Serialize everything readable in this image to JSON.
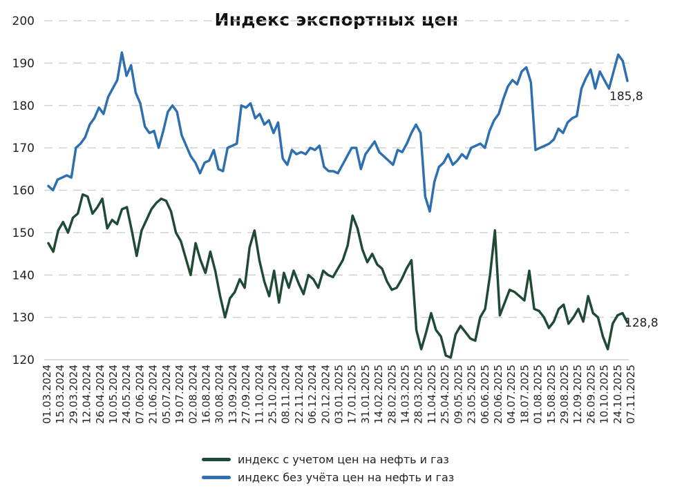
{
  "chart_data": {
    "type": "line",
    "title": "Индекс экспортных цен",
    "xlabel": "",
    "ylabel": "",
    "ylim": [
      120,
      200
    ],
    "yticks": [
      120,
      130,
      140,
      150,
      160,
      170,
      180,
      190,
      200
    ],
    "grid": true,
    "legend_position": "bottom",
    "x_tick_labels": [
      "01.03.2024",
      "15.03.2024",
      "29.03.2024",
      "12.04.2024",
      "26.04.2024",
      "10.05.2024",
      "24.05.2024",
      "07.06.2024",
      "21.06.2024",
      "05.07.2024",
      "19.07.2024",
      "02.08.2024",
      "16.08.2024",
      "30.08.2024",
      "13.09.2024",
      "27.09.2024",
      "11.10.2024",
      "25.10.2024",
      "08.11.2024",
      "22.11.2024",
      "06.12.2024",
      "20.12.2024",
      "03.01.2025",
      "17.01.2025",
      "31.01.2025",
      "14.02.2025",
      "28.02.2025",
      "14.03.2025",
      "28.03.2025",
      "11.04.2025",
      "25.04.2025",
      "09.05.2025",
      "23.05.2025",
      "06.06.2025",
      "20.06.2025",
      "04.07.2025",
      "18.07.2025",
      "01.08.2025",
      "15.08.2025",
      "29.08.2025",
      "12.09.2025",
      "26.09.2025",
      "10.10.2025",
      "24.10.2025",
      "07.11.2025"
    ],
    "series": [
      {
        "name": "индекс с учетом цен на нефть и газ",
        "color": "#1f4a35",
        "end_label": "128,8",
        "values": [
          147.5,
          145.5,
          150.5,
          152.5,
          150.0,
          153.5,
          154.5,
          159.0,
          158.5,
          154.5,
          156.0,
          158.0,
          151.0,
          153.0,
          152.0,
          155.5,
          156.0,
          150.5,
          144.5,
          150.5,
          153.0,
          155.5,
          157.0,
          158.0,
          157.5,
          155.0,
          150.0,
          148.0,
          144.0,
          140.0,
          147.5,
          143.5,
          140.5,
          145.5,
          141.0,
          135.0,
          130.0,
          134.5,
          136.0,
          139.0,
          137.0,
          146.5,
          150.5,
          143.5,
          138.5,
          135.0,
          141.0,
          133.5,
          140.5,
          137.0,
          141.0,
          138.0,
          135.5,
          140.0,
          139.0,
          137.0,
          141.0,
          140.0,
          139.5,
          141.5,
          143.5,
          147.0,
          154.0,
          151.0,
          146.0,
          143.0,
          145.0,
          142.5,
          141.5,
          138.5,
          136.5,
          137.0,
          139.0,
          141.5,
          143.5,
          127.0,
          122.5,
          126.5,
          131.0,
          127.0,
          125.5,
          121.0,
          120.5,
          126.0,
          128.0,
          126.5,
          125.0,
          124.5,
          130.0,
          132.0,
          140.0,
          150.5,
          130.5,
          133.5,
          136.5,
          136.0,
          135.0,
          134.0,
          141.0,
          132.0,
          131.5,
          130.0,
          127.5,
          129.0,
          132.0,
          133.0,
          128.5,
          130.0,
          132.0,
          129.0,
          135.0,
          131.0,
          130.0,
          125.5,
          122.5,
          128.5,
          130.5,
          131.0,
          128.8
        ]
      },
      {
        "name": "индекс без учёта цен на нефть и газ",
        "color": "#2e6fb0",
        "end_label": "185,8",
        "values": [
          161.0,
          160.0,
          162.5,
          163.0,
          163.5,
          163.0,
          170.0,
          171.0,
          172.5,
          175.5,
          177.0,
          179.5,
          178.0,
          182.0,
          184.0,
          186.0,
          192.5,
          187.0,
          189.5,
          183.0,
          180.5,
          175.0,
          173.5,
          174.0,
          170.0,
          174.0,
          178.5,
          180.0,
          178.5,
          173.0,
          170.5,
          168.0,
          166.5,
          164.0,
          166.5,
          167.0,
          169.5,
          165.0,
          164.5,
          170.0,
          170.5,
          171.0,
          180.0,
          179.5,
          180.5,
          177.0,
          178.0,
          175.5,
          176.5,
          173.5,
          176.0,
          167.5,
          166.0,
          169.5,
          168.5,
          169.0,
          168.5,
          170.0,
          169.5,
          170.5,
          165.5,
          164.5,
          164.5,
          164.0,
          166.0,
          168.0,
          170.0,
          170.0,
          165.0,
          168.5,
          170.0,
          171.5,
          169.0,
          168.0,
          167.0,
          166.0,
          169.5,
          169.0,
          171.0,
          173.5,
          175.5,
          173.5,
          158.5,
          155.0,
          162.0,
          165.5,
          166.5,
          168.5,
          166.0,
          167.0,
          168.5,
          167.5,
          170.0,
          170.5,
          171.0,
          170.0,
          174.0,
          176.5,
          178.0,
          181.5,
          184.5,
          186.0,
          185.0,
          188.0,
          189.0,
          185.5,
          169.5,
          170.0,
          170.5,
          171.0,
          172.0,
          174.5,
          173.5,
          176.0,
          177.0,
          177.5,
          184.0,
          186.5,
          188.5,
          184.0,
          188.0,
          186.0,
          184.0,
          188.0,
          192.0,
          190.5,
          185.8
        ]
      }
    ]
  },
  "title": "Индекс экспортных цен",
  "legend": {
    "items": [
      {
        "label": "индекс с учетом цен на нефть и газ",
        "color": "#1f4a35"
      },
      {
        "label": "индекс без учёта цен на нефть и газ",
        "color": "#2e6fb0"
      }
    ]
  }
}
